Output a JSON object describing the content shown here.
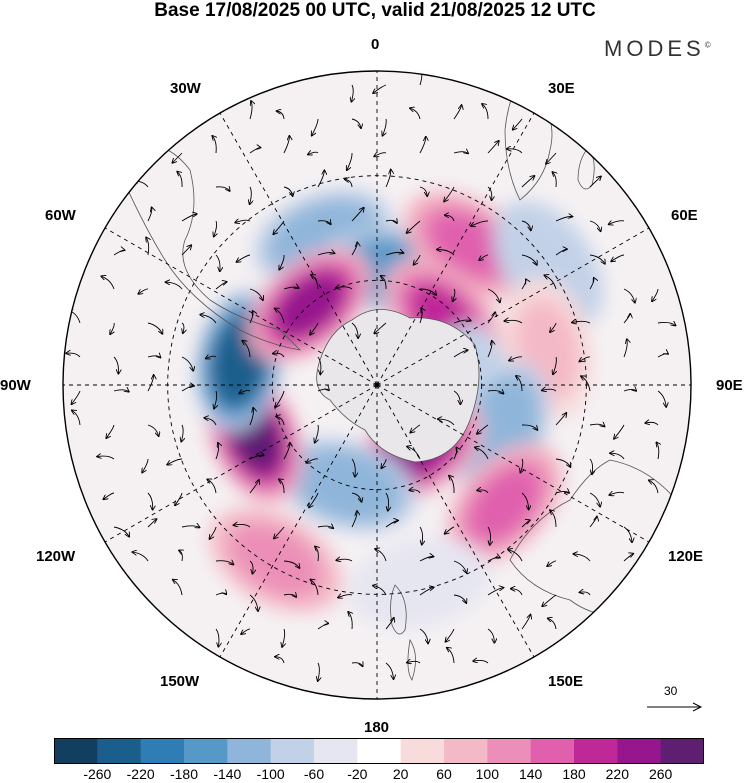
{
  "title": "Base 17/08/2025 00 UTC, valid 21/08/2025 12 UTC",
  "brand": "MODES",
  "brand_mark": "©",
  "longitude_labels": {
    "lon_0": "0",
    "lon_30e": "30E",
    "lon_60e": "60E",
    "lon_90e": "90E",
    "lon_120e": "120E",
    "lon_150e": "150E",
    "lon_180": "180",
    "lon_150w": "150W",
    "lon_120w": "120W",
    "lon_90w": "90W",
    "lon_60w": "60W",
    "lon_30w": "30W"
  },
  "reference_vector": "30",
  "colorbar": {
    "ticks": [
      "-260",
      "-220",
      "-180",
      "-140",
      "-100",
      "-60",
      "-20",
      "20",
      "60",
      "100",
      "140",
      "180",
      "220",
      "260"
    ],
    "colors": [
      "#123f60",
      "#1b5e8c",
      "#2f7db5",
      "#5699c8",
      "#8fb6da",
      "#c2d1e8",
      "#e6e6f1",
      "#ffffff",
      "#f8dcdc",
      "#f4b9c6",
      "#ec8fb8",
      "#e060ae",
      "#c0289a",
      "#95168d",
      "#5e1f73"
    ]
  },
  "anomaly_centers": [
    {
      "name": "anomaly-neg-30w",
      "lon": -20,
      "colat": 45,
      "value": -140
    },
    {
      "name": "anomaly-neg-10e",
      "lon": 8,
      "colat": 33,
      "value": -180
    },
    {
      "name": "anomaly-pos-35e",
      "lon": 33,
      "colat": 48,
      "value": 140
    },
    {
      "name": "anomaly-neg-60e",
      "lon": 55,
      "colat": 60,
      "value": -100
    },
    {
      "name": "anomaly-pos-45e",
      "lon": 45,
      "colat": 27,
      "value": 180
    },
    {
      "name": "anomaly-pos-80e",
      "lon": 78,
      "colat": 50,
      "value": 60
    },
    {
      "name": "anomaly-neg-95e",
      "lon": 97,
      "colat": 25,
      "value": -100
    },
    {
      "name": "anomaly-neg-110e",
      "lon": 110,
      "colat": 38,
      "value": -140
    },
    {
      "name": "anomaly-pos-150e",
      "lon": 148,
      "colat": 22,
      "value": 220
    },
    {
      "name": "anomaly-pos-135e",
      "lon": 133,
      "colat": 50,
      "value": 140
    },
    {
      "name": "anomaly-neg-160w",
      "lon": -163,
      "colat": 30,
      "value": -140
    },
    {
      "name": "anomaly-neg-170e",
      "lon": 168,
      "colat": 58,
      "value": -60
    },
    {
      "name": "anomaly-pos-110w",
      "lon": -112,
      "colat": 38,
      "value": 260
    },
    {
      "name": "anomaly-neg-80w",
      "lon": -80,
      "colat": 40,
      "value": -260
    },
    {
      "name": "anomaly-pos-40w",
      "lon": -40,
      "colat": 30,
      "value": 220
    },
    {
      "name": "anomaly-pos-150w",
      "lon": -150,
      "colat": 58,
      "value": 100
    }
  ]
}
